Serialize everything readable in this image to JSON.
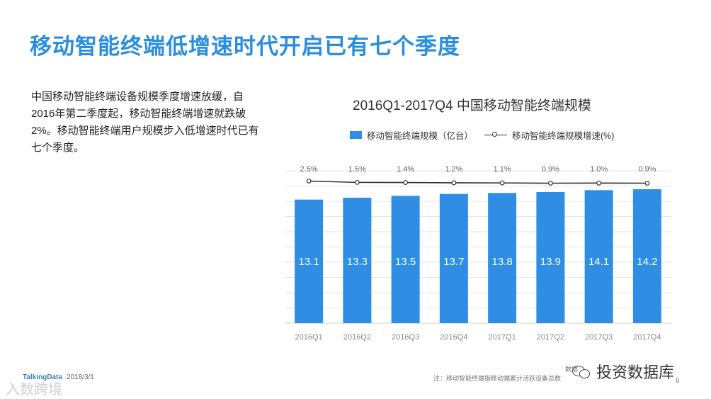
{
  "page": {
    "title": "移动智能终端低增速时代开启已有七个季度",
    "summary": "中国移动智能终端设备规模季度增速放缓，自2016年第二季度起，移动智能终端增速就跌破2%。移动智能终端用户规模步入低增速时代已有七个季度。"
  },
  "chart_data": {
    "type": "bar",
    "title": "2016Q1-2017Q4 中国移动智能终端规模",
    "categories": [
      "2016Q1",
      "2016Q2",
      "2016Q3",
      "2016Q4",
      "2017Q1",
      "2017Q2",
      "2017Q3",
      "2017Q4"
    ],
    "series": [
      {
        "name": "移动智能终端规模（亿台）",
        "type": "bar",
        "values": [
          13.1,
          13.3,
          13.5,
          13.7,
          13.8,
          13.9,
          14.1,
          14.2
        ],
        "labels": [
          "13.1",
          "13.3",
          "13.5",
          "13.7",
          "13.8",
          "13.9",
          "14.1",
          "14.2"
        ],
        "color": "#2f8ee3"
      },
      {
        "name": "移动智能终端规模增速(%)",
        "type": "line",
        "values": [
          2.5,
          1.5,
          1.4,
          1.2,
          1.1,
          0.9,
          1.0,
          0.9
        ],
        "labels": [
          "2.5%",
          "1.5%",
          "1.4%",
          "1.2%",
          "1.1%",
          "0.9%",
          "1.0%",
          "0.9%"
        ],
        "color": "#333333"
      }
    ],
    "grid": true,
    "legend_position": "top"
  },
  "footer": {
    "brand": "TalkingData",
    "date": "2018/3/1",
    "watermark": "入数跨境",
    "source_label": "数据",
    "note": "注：移动智能终端指移动端累计活跃设备总数",
    "wechat_label": "投资数据库",
    "page_number": "6"
  }
}
